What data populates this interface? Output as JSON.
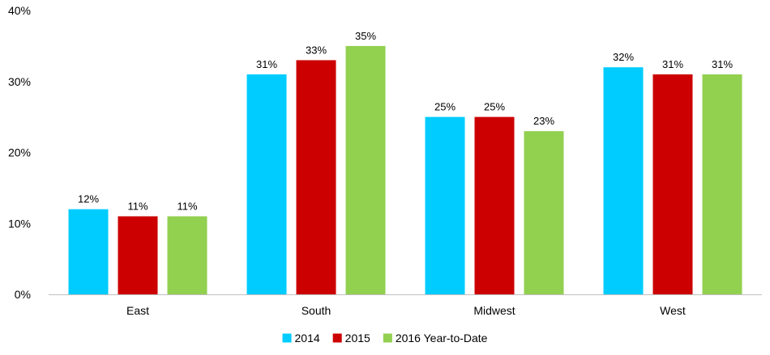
{
  "chart_data": {
    "type": "bar",
    "categories": [
      "East",
      "South",
      "Midwest",
      "West"
    ],
    "series": [
      {
        "name": "2014",
        "values": [
          12,
          31,
          25,
          32
        ],
        "color": "#00CCFF"
      },
      {
        "name": "2015",
        "values": [
          11,
          33,
          25,
          31
        ],
        "color": "#CC0000"
      },
      {
        "name": "2016 Year-to-Date",
        "values": [
          11,
          35,
          23,
          31
        ],
        "color": "#92D050"
      }
    ],
    "data_labels": [
      [
        "12%",
        "31%",
        "25%",
        "32%"
      ],
      [
        "11%",
        "33%",
        "25%",
        "31%"
      ],
      [
        "11%",
        "35%",
        "23%",
        "31%"
      ]
    ],
    "y_ticks": [
      {
        "value": 0,
        "label": "0%"
      },
      {
        "value": 10,
        "label": "10%"
      },
      {
        "value": 20,
        "label": "20%"
      },
      {
        "value": 30,
        "label": "30%"
      },
      {
        "value": 40,
        "label": "40%"
      }
    ],
    "ylim": [
      0,
      40
    ],
    "grid": false,
    "legend": "bottom",
    "axis_color": "#BFBFBF"
  }
}
